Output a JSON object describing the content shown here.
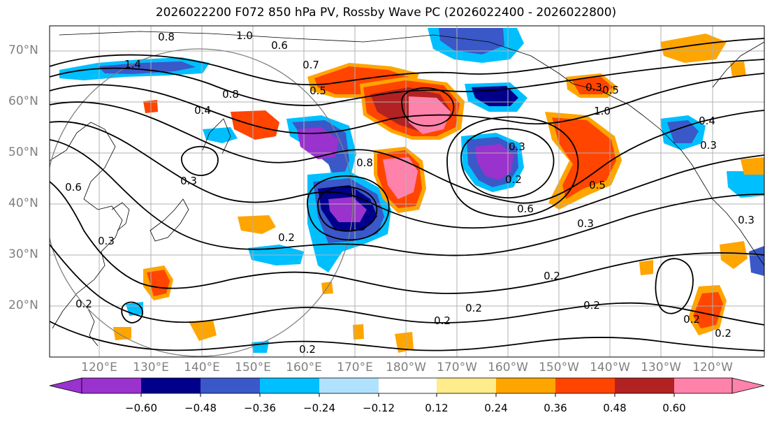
{
  "title": "2026022200 F072 850 hPa PV, Rossby Wave PC (2026022400 - 2026022800)",
  "lat_labels": [
    "70°N",
    "60°N",
    "50°N",
    "40°N",
    "30°N",
    "20°N"
  ],
  "lon_labels": [
    "120°E",
    "130°E",
    "140°E",
    "150°E",
    "160°E",
    "170°E",
    "180°W",
    "170°W",
    "160°W",
    "150°W",
    "140°W",
    "130°W",
    "120°W"
  ],
  "colorbar": {
    "colors": [
      "#9a32cd",
      "#00008b",
      "#3a58c8",
      "#00bfff",
      "#b0e2ff",
      "#ffffff",
      "#ffec8b",
      "#ffa500",
      "#ff4500",
      "#b22222",
      "#ff82ab"
    ],
    "tick_labels": [
      "−0.60",
      "−0.48",
      "−0.36",
      "−0.24",
      "−0.12",
      "0.12",
      "0.24",
      "0.36",
      "0.48",
      "0.60"
    ]
  },
  "contour_labels": [
    "0.8",
    "1.0",
    "0.6",
    "1.4",
    "0.7",
    "0.5",
    "0.4",
    "0.3",
    "0.6",
    "0.8",
    "0.3",
    "1.0",
    "0.5",
    "0.4",
    "0.3",
    "0.8",
    "0.3",
    "0.2",
    "0.6",
    "0.3",
    "0.2",
    "0.2",
    "0.2",
    "0.2",
    "0.2",
    "0.2",
    "0.3",
    "0.2",
    "0.2",
    "0.3",
    "0.2",
    "0.5"
  ]
}
